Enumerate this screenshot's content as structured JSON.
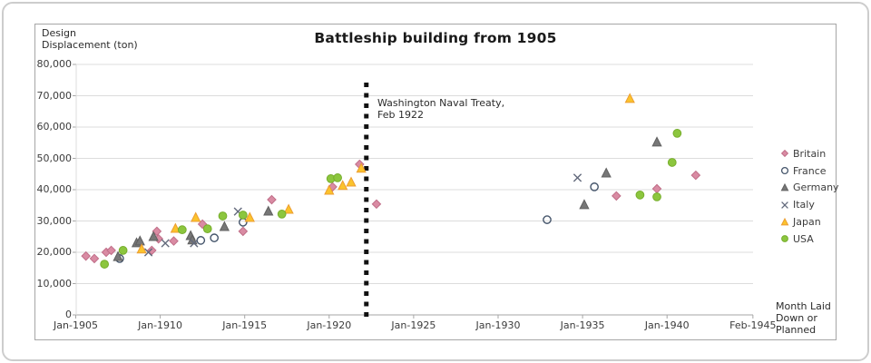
{
  "chart": {
    "title": "Battleship building from 1905",
    "y_axis_label": [
      "Design",
      "Displacement (ton)"
    ],
    "x_axis_title_lines": [
      "Month Laid",
      "Down or",
      "Planned"
    ],
    "annotation": {
      "line1": "Washington Naval Treaty,",
      "line2": "Feb 1922",
      "year": 1922.2
    },
    "colors": {
      "grid": "#dcdcdc",
      "axis": "#a6a6a6",
      "treaty_line": "#111111",
      "tick_text": "#3c3c3c"
    }
  },
  "chart_data": {
    "type": "scatter",
    "title": "Battleship building from 1905",
    "xlabel": "Month Laid Down or Planned",
    "ylabel": "Design Displacement (ton)",
    "xlim": [
      1905,
      1945.25
    ],
    "ylim": [
      0,
      80000
    ],
    "grid": true,
    "legend_position": "right",
    "y_ticks": [
      {
        "value": 0,
        "label": "0"
      },
      {
        "value": 10000,
        "label": "10,000"
      },
      {
        "value": 20000,
        "label": "20,000"
      },
      {
        "value": 30000,
        "label": "30,000"
      },
      {
        "value": 40000,
        "label": "40,000"
      },
      {
        "value": 50000,
        "label": "50,000"
      },
      {
        "value": 60000,
        "label": "60,000"
      },
      {
        "value": 70000,
        "label": "70,000"
      },
      {
        "value": 80000,
        "label": "80,000"
      }
    ],
    "x_ticks": [
      {
        "year": 1905,
        "label": "Jan-1905"
      },
      {
        "year": 1910,
        "label": "Jan-1910"
      },
      {
        "year": 1915,
        "label": "Jan-1915"
      },
      {
        "year": 1920,
        "label": "Jan-1920"
      },
      {
        "year": 1925,
        "label": "Jan-1925"
      },
      {
        "year": 1930,
        "label": "Jan-1930"
      },
      {
        "year": 1935,
        "label": "Jan-1935"
      },
      {
        "year": 1940,
        "label": "Jan-1940"
      },
      {
        "year": 1945.083,
        "label": "Feb-1945"
      }
    ],
    "annotation": {
      "text": "Washington Naval Treaty, Feb 1922",
      "x_year": 1922.2,
      "style": "vertical-dashed-line"
    },
    "series": [
      {
        "name": "Britain",
        "marker": "diamond",
        "fill": "#D98BA3",
        "stroke": "#C06E88",
        "points": [
          [
            1905.6,
            18800
          ],
          [
            1906.1,
            18000
          ],
          [
            1906.8,
            20000
          ],
          [
            1907.1,
            20600
          ],
          [
            1909.5,
            20600
          ],
          [
            1909.8,
            26700
          ],
          [
            1909.9,
            24300
          ],
          [
            1910.8,
            23600
          ],
          [
            1912.5,
            29000
          ],
          [
            1914.9,
            26700
          ],
          [
            1916.6,
            36800
          ],
          [
            1920.2,
            40900
          ],
          [
            1921.8,
            48100
          ],
          [
            1922.8,
            35400
          ],
          [
            1937.0,
            38000
          ],
          [
            1939.4,
            40300
          ],
          [
            1941.7,
            44600
          ]
        ]
      },
      {
        "name": "France",
        "marker": "open-circle",
        "fill": "none",
        "stroke": "#44546A",
        "points": [
          [
            1907.6,
            18000
          ],
          [
            1912.4,
            23800
          ],
          [
            1913.2,
            24600
          ],
          [
            1914.9,
            29600
          ],
          [
            1932.9,
            30400
          ],
          [
            1935.7,
            40900
          ]
        ]
      },
      {
        "name": "Germany",
        "marker": "triangle",
        "fill": "#777777",
        "stroke": "#606060",
        "points": [
          [
            1907.5,
            18500
          ],
          [
            1908.6,
            22900
          ],
          [
            1908.8,
            23500
          ],
          [
            1909.6,
            24900
          ],
          [
            1911.8,
            25200
          ],
          [
            1911.9,
            23800
          ],
          [
            1913.8,
            28100
          ],
          [
            1916.4,
            33000
          ],
          [
            1935.1,
            35100
          ],
          [
            1936.4,
            45200
          ],
          [
            1939.4,
            55100
          ]
        ]
      },
      {
        "name": "Italy",
        "marker": "x",
        "fill": "none",
        "stroke": "#636A7C",
        "points": [
          [
            1909.3,
            20000
          ],
          [
            1910.3,
            22900
          ],
          [
            1912.0,
            22900
          ],
          [
            1914.6,
            33000
          ],
          [
            1934.7,
            43800
          ]
        ]
      },
      {
        "name": "Japan",
        "marker": "triangle",
        "fill": "#FBC32C",
        "stroke": "#EC9D31",
        "points": [
          [
            1908.9,
            20900
          ],
          [
            1910.9,
            27500
          ],
          [
            1912.1,
            31000
          ],
          [
            1915.3,
            31000
          ],
          [
            1917.6,
            33600
          ],
          [
            1920.0,
            39700
          ],
          [
            1920.8,
            41200
          ],
          [
            1921.3,
            42300
          ],
          [
            1921.9,
            46700
          ],
          [
            1937.8,
            69000
          ]
        ]
      },
      {
        "name": "USA",
        "marker": "circle",
        "fill": "#8CC63E",
        "stroke": "#76AD2B",
        "points": [
          [
            1906.7,
            16200
          ],
          [
            1907.8,
            20600
          ],
          [
            1911.3,
            27200
          ],
          [
            1912.8,
            27500
          ],
          [
            1913.7,
            31600
          ],
          [
            1914.9,
            31900
          ],
          [
            1917.2,
            32200
          ],
          [
            1920.1,
            43500
          ],
          [
            1920.5,
            43800
          ],
          [
            1938.4,
            38300
          ],
          [
            1939.4,
            37700
          ],
          [
            1940.3,
            48700
          ],
          [
            1940.6,
            58000
          ]
        ]
      }
    ]
  }
}
